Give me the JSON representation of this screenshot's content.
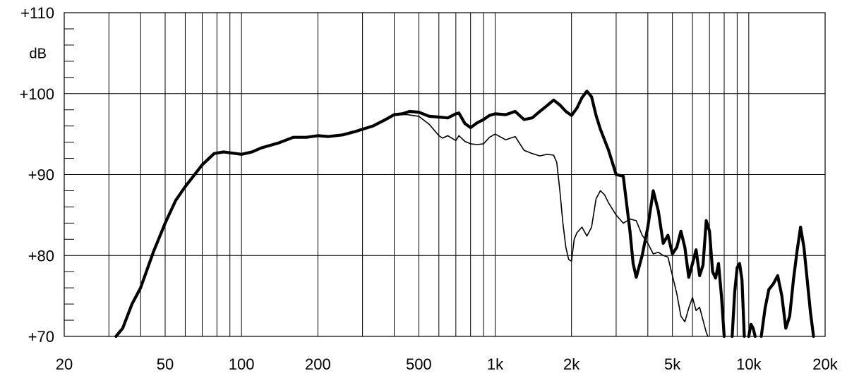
{
  "chart_data": {
    "type": "line",
    "title": "",
    "xlabel": "",
    "ylabel": "dB",
    "x_scale": "log",
    "xlim": [
      20,
      20000
    ],
    "ylim": [
      70,
      110
    ],
    "grid": true,
    "x_ticks": [
      {
        "value": 20,
        "label": "20"
      },
      {
        "value": 50,
        "label": "50"
      },
      {
        "value": 100,
        "label": "100"
      },
      {
        "value": 200,
        "label": "200"
      },
      {
        "value": 500,
        "label": "500"
      },
      {
        "value": 1000,
        "label": "1k"
      },
      {
        "value": 2000,
        "label": "2k"
      },
      {
        "value": 5000,
        "label": "5k"
      },
      {
        "value": 10000,
        "label": "10k"
      },
      {
        "value": 20000,
        "label": "20k"
      }
    ],
    "y_ticks": [
      {
        "value": 70,
        "label": "+70"
      },
      {
        "value": 80,
        "label": "+80"
      },
      {
        "value": 90,
        "label": "+90"
      },
      {
        "value": 100,
        "label": "+100"
      },
      {
        "value": 110,
        "label": "+110"
      }
    ],
    "series": [
      {
        "style": "thick",
        "color": "#000000",
        "points": [
          [
            32,
            70
          ],
          [
            34,
            71
          ],
          [
            37,
            74
          ],
          [
            40,
            76
          ],
          [
            45,
            80.5
          ],
          [
            50,
            84
          ],
          [
            55,
            86.8
          ],
          [
            60,
            88.5
          ],
          [
            70,
            91.2
          ],
          [
            78,
            92.6
          ],
          [
            85,
            92.8
          ],
          [
            100,
            92.5
          ],
          [
            110,
            92.8
          ],
          [
            120,
            93.3
          ],
          [
            140,
            93.9
          ],
          [
            160,
            94.6
          ],
          [
            180,
            94.6
          ],
          [
            200,
            94.8
          ],
          [
            220,
            94.7
          ],
          [
            250,
            94.9
          ],
          [
            280,
            95.3
          ],
          [
            300,
            95.6
          ],
          [
            330,
            96
          ],
          [
            370,
            96.8
          ],
          [
            400,
            97.4
          ],
          [
            430,
            97.5
          ],
          [
            460,
            97.8
          ],
          [
            500,
            97.7
          ],
          [
            550,
            97.2
          ],
          [
            600,
            97.1
          ],
          [
            650,
            97.0
          ],
          [
            700,
            97.5
          ],
          [
            720,
            97.6
          ],
          [
            760,
            96.3
          ],
          [
            800,
            95.8
          ],
          [
            850,
            96.4
          ],
          [
            900,
            96.8
          ],
          [
            950,
            97.3
          ],
          [
            1000,
            97.5
          ],
          [
            1100,
            97.4
          ],
          [
            1200,
            97.8
          ],
          [
            1300,
            96.8
          ],
          [
            1400,
            97.0
          ],
          [
            1500,
            97.8
          ],
          [
            1600,
            98.5
          ],
          [
            1700,
            99.2
          ],
          [
            1800,
            98.6
          ],
          [
            1900,
            97.8
          ],
          [
            2000,
            97.3
          ],
          [
            2100,
            98.2
          ],
          [
            2200,
            99.5
          ],
          [
            2300,
            100.3
          ],
          [
            2400,
            99.6
          ],
          [
            2500,
            97.3
          ],
          [
            2600,
            95.6
          ],
          [
            2800,
            93
          ],
          [
            3000,
            90
          ],
          [
            3200,
            89.8
          ],
          [
            3400,
            83
          ],
          [
            3500,
            79
          ],
          [
            3600,
            77.3
          ],
          [
            3800,
            80
          ],
          [
            4000,
            83.5
          ],
          [
            4200,
            88
          ],
          [
            4400,
            85.5
          ],
          [
            4600,
            81.5
          ],
          [
            4800,
            82.5
          ],
          [
            5000,
            80.2
          ],
          [
            5200,
            81
          ],
          [
            5400,
            83
          ],
          [
            5600,
            81
          ],
          [
            5800,
            77.3
          ],
          [
            6000,
            79
          ],
          [
            6200,
            80.7
          ],
          [
            6400,
            77.5
          ],
          [
            6600,
            78.8
          ],
          [
            6800,
            84.3
          ],
          [
            7000,
            83
          ],
          [
            7200,
            78
          ],
          [
            7400,
            77.2
          ],
          [
            7600,
            79
          ],
          [
            7800,
            75
          ],
          [
            8000,
            70
          ]
        ]
      },
      {
        "style": "thick",
        "color": "#000000",
        "points": [
          [
            8600,
            70
          ],
          [
            8800,
            75.5
          ],
          [
            9000,
            78.5
          ],
          [
            9200,
            79
          ],
          [
            9400,
            77
          ],
          [
            9600,
            70
          ]
        ]
      },
      {
        "style": "thick",
        "color": "#000000",
        "points": [
          [
            10000,
            70
          ],
          [
            10200,
            71.5
          ],
          [
            10400,
            71
          ],
          [
            10600,
            70
          ]
        ]
      },
      {
        "style": "thick",
        "color": "#000000",
        "points": [
          [
            11200,
            70
          ],
          [
            11600,
            73.5
          ],
          [
            12000,
            75.8
          ],
          [
            12500,
            76.5
          ],
          [
            13000,
            77.5
          ],
          [
            13500,
            75
          ],
          [
            14000,
            71
          ],
          [
            14500,
            72.5
          ],
          [
            15000,
            77
          ],
          [
            15500,
            80.5
          ],
          [
            16000,
            83.5
          ],
          [
            16500,
            81
          ],
          [
            17000,
            77
          ],
          [
            17500,
            73
          ],
          [
            18000,
            70
          ]
        ]
      },
      {
        "style": "thin",
        "color": "#000000",
        "points": [
          [
            400,
            97.4
          ],
          [
            450,
            97.4
          ],
          [
            500,
            97.2
          ],
          [
            550,
            96.2
          ],
          [
            600,
            94.8
          ],
          [
            620,
            94.5
          ],
          [
            650,
            94.8
          ],
          [
            700,
            94.2
          ],
          [
            720,
            94.8
          ],
          [
            760,
            94.1
          ],
          [
            800,
            93.8
          ],
          [
            850,
            93.7
          ],
          [
            900,
            93.8
          ],
          [
            950,
            94.6
          ],
          [
            1000,
            95
          ],
          [
            1100,
            94.3
          ],
          [
            1200,
            94.7
          ],
          [
            1300,
            93
          ],
          [
            1400,
            92.6
          ],
          [
            1500,
            92.3
          ],
          [
            1600,
            92.5
          ],
          [
            1700,
            92.4
          ],
          [
            1750,
            91.5
          ],
          [
            1800,
            88
          ],
          [
            1850,
            84
          ],
          [
            1900,
            81
          ],
          [
            1950,
            79.5
          ],
          [
            2000,
            79.3
          ],
          [
            2050,
            82
          ],
          [
            2100,
            82.8
          ],
          [
            2200,
            83.5
          ],
          [
            2300,
            82.4
          ],
          [
            2400,
            83.5
          ],
          [
            2500,
            87
          ],
          [
            2600,
            88
          ],
          [
            2700,
            87.5
          ],
          [
            2800,
            86.5
          ],
          [
            3000,
            85
          ],
          [
            3200,
            84
          ],
          [
            3400,
            84.5
          ],
          [
            3600,
            84.3
          ],
          [
            3800,
            82.5
          ],
          [
            4000,
            81.5
          ],
          [
            4200,
            80.2
          ],
          [
            4400,
            80.4
          ],
          [
            4600,
            80
          ],
          [
            4800,
            79.8
          ],
          [
            5000,
            77.5
          ],
          [
            5200,
            75.3
          ],
          [
            5400,
            72.5
          ],
          [
            5600,
            71.8
          ],
          [
            5800,
            73.5
          ],
          [
            6000,
            74.8
          ],
          [
            6200,
            73.2
          ],
          [
            6400,
            73.6
          ],
          [
            6600,
            72
          ],
          [
            6800,
            70.5
          ],
          [
            6900,
            70
          ]
        ]
      }
    ]
  }
}
